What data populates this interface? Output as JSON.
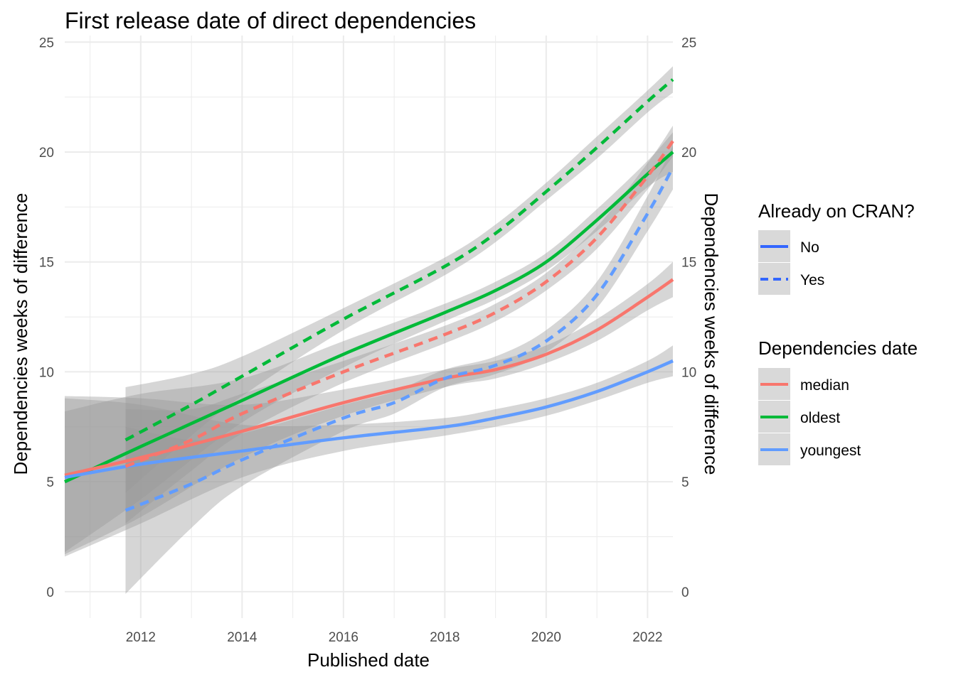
{
  "chart_data": {
    "type": "line",
    "title": "First release date of direct dependencies",
    "xlabel": "Published date",
    "ylabel": "Dependencies weeks of difference",
    "ylabel_right": "Dependencies weeks of difference",
    "xlim": [
      2010.5,
      2022.5
    ],
    "ylim": [
      -1.2,
      25.3
    ],
    "x_ticks": [
      2012,
      2014,
      2016,
      2018,
      2020,
      2022
    ],
    "y_ticks": [
      0,
      5,
      10,
      15,
      20,
      25
    ],
    "grid": true,
    "legend_position": "right",
    "legend_cran": {
      "title": "Already on CRAN?",
      "items": [
        {
          "label": "No",
          "linetype": "solid",
          "color": "#3366ff"
        },
        {
          "label": "Yes",
          "linetype": "dashed",
          "color": "#3366ff"
        }
      ]
    },
    "legend_dep": {
      "title": "Dependencies date",
      "items": [
        {
          "label": "median",
          "color": "#f8766d"
        },
        {
          "label": "oldest",
          "color": "#00ba38"
        },
        {
          "label": "youngest",
          "color": "#619cff"
        }
      ]
    },
    "series": [
      {
        "cran": "No",
        "dep": "oldest",
        "color": "#00ba38",
        "linetype": "solid",
        "x": [
          2010.5,
          2012,
          2014,
          2016,
          2018,
          2019,
          2020,
          2021,
          2022,
          2022.5
        ],
        "y": [
          5.0,
          6.6,
          8.7,
          10.8,
          12.7,
          13.7,
          15.0,
          16.9,
          19.0,
          20.0
        ],
        "band": [
          3.2,
          2.4,
          1.0,
          0.6,
          0.4,
          0.4,
          0.4,
          0.5,
          0.6,
          0.9
        ]
      },
      {
        "cran": "No",
        "dep": "median",
        "color": "#f8766d",
        "linetype": "solid",
        "x": [
          2010.5,
          2012,
          2014,
          2016,
          2018,
          2019,
          2020,
          2021,
          2022,
          2022.5
        ],
        "y": [
          5.3,
          6.1,
          7.3,
          8.6,
          9.7,
          10.1,
          10.8,
          11.9,
          13.4,
          14.2
        ],
        "band": [
          3.6,
          2.7,
          1.2,
          0.6,
          0.4,
          0.4,
          0.4,
          0.5,
          0.6,
          0.8
        ]
      },
      {
        "cran": "No",
        "dep": "youngest",
        "color": "#619cff",
        "linetype": "solid",
        "x": [
          2010.5,
          2012,
          2014,
          2016,
          2018,
          2019,
          2020,
          2021,
          2022,
          2022.5
        ],
        "y": [
          5.2,
          5.8,
          6.4,
          7.0,
          7.5,
          7.9,
          8.4,
          9.1,
          10.0,
          10.5
        ],
        "band": [
          3.6,
          2.7,
          1.2,
          0.6,
          0.4,
          0.4,
          0.4,
          0.4,
          0.5,
          0.7
        ]
      },
      {
        "cran": "Yes",
        "dep": "oldest",
        "color": "#00ba38",
        "linetype": "dashed",
        "x": [
          2011.7,
          2013,
          2014,
          2016,
          2018,
          2019,
          2020,
          2021,
          2022,
          2022.5
        ],
        "y": [
          6.9,
          8.5,
          9.8,
          12.4,
          14.8,
          16.3,
          18.2,
          20.2,
          22.3,
          23.3
        ],
        "band": [
          2.4,
          1.4,
          0.9,
          0.5,
          0.4,
          0.4,
          0.4,
          0.5,
          0.5,
          0.6
        ]
      },
      {
        "cran": "Yes",
        "dep": "median",
        "color": "#f8766d",
        "linetype": "dashed",
        "x": [
          2011.7,
          2013,
          2014,
          2016,
          2018,
          2019,
          2020,
          2021,
          2022,
          2022.5
        ],
        "y": [
          5.7,
          6.9,
          8.1,
          10.0,
          11.7,
          12.7,
          14.1,
          16.1,
          18.9,
          20.5
        ],
        "band": [
          2.6,
          1.4,
          0.9,
          0.5,
          0.4,
          0.4,
          0.4,
          0.5,
          0.6,
          0.7
        ]
      },
      {
        "cran": "Yes",
        "dep": "youngest",
        "color": "#619cff",
        "linetype": "dashed",
        "x": [
          2011.7,
          2013,
          2014,
          2016,
          2017,
          2018,
          2019,
          2020,
          2021,
          2022,
          2022.5
        ],
        "y": [
          3.7,
          4.9,
          6.0,
          7.9,
          8.6,
          9.7,
          10.3,
          11.4,
          13.5,
          17.2,
          19.3
        ],
        "band": [
          3.8,
          2.0,
          1.2,
          0.6,
          0.5,
          0.4,
          0.4,
          0.5,
          0.6,
          0.8,
          1.0
        ]
      }
    ]
  }
}
